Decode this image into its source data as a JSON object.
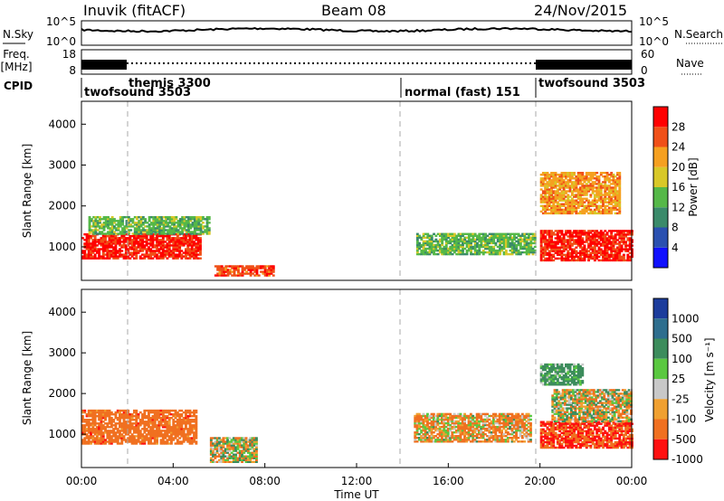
{
  "header": {
    "station": "Inuvik (fitACF)",
    "beam": "Beam 08",
    "date": "24/Nov/2015"
  },
  "strips": {
    "nsky_label": "N.Sky",
    "nsky_ticks": [
      "10^5",
      "10^0"
    ],
    "nsearch_label": "N.Search",
    "nsearch_ticks": [
      "10^5",
      "10^0"
    ],
    "freq_label_1": "Freq.",
    "freq_label_2": "[MHz]",
    "freq_ticks": [
      "18",
      "8"
    ],
    "nave_label": "Nave",
    "nave_ticks": [
      "60",
      "0"
    ],
    "cpid_label": "CPID",
    "programs": [
      {
        "name": "twofsound 3503",
        "start_h": 0
      },
      {
        "name": "themis 3300",
        "start_h": 2
      },
      {
        "name": "normal (fast) 151",
        "start_h": 14
      },
      {
        "name": "twofsound 3503",
        "start_h": 20
      }
    ]
  },
  "axes": {
    "ylabel": "Slant Range [km]",
    "xlabel": "Time UT",
    "yticks": [
      "1000",
      "2000",
      "3000",
      "4000"
    ],
    "xticks": [
      "00:00",
      "04:00",
      "08:00",
      "12:00",
      "16:00",
      "20:00",
      "00:00"
    ],
    "xlim_hours": [
      0,
      24
    ],
    "ylim_km": [
      180,
      4560
    ]
  },
  "power_scale": {
    "label": "Power [dB]",
    "ticks": [
      "4",
      "8",
      "12",
      "16",
      "20",
      "24",
      "28"
    ],
    "colors": [
      "#1010ff",
      "#2a50b0",
      "#3a8a6a",
      "#55b848",
      "#d8c828",
      "#f5a020",
      "#f05018",
      "#ff0000"
    ]
  },
  "velocity_scale": {
    "label": "Velocity [m s⁻¹]",
    "ticks": [
      "1000",
      "500",
      "100",
      "25",
      "-25",
      "-100",
      "-500",
      "-1000"
    ],
    "colors": [
      "#1c3c9c",
      "#2e6e8e",
      "#3c8c5c",
      "#5ac840",
      "#c8c8c8",
      "#f0a030",
      "#f07020",
      "#ff1010"
    ]
  },
  "chart_data": [
    {
      "type": "heatmap",
      "title": "Power",
      "xlabel": "Time UT",
      "ylabel": "Slant Range [km]",
      "xlim": [
        0,
        24
      ],
      "ylim": [
        180,
        4560
      ],
      "colorbar": {
        "label": "Power [dB]",
        "range": [
          0,
          30
        ]
      },
      "regions": [
        {
          "t0": 0.0,
          "t1": 5.2,
          "r0": 700,
          "r1": 1300,
          "value": 27
        },
        {
          "t0": 0.3,
          "t1": 5.6,
          "r0": 1300,
          "r1": 1750,
          "value": 13
        },
        {
          "t0": 5.8,
          "t1": 8.4,
          "r0": 280,
          "r1": 520,
          "value": 25
        },
        {
          "t0": 14.6,
          "t1": 19.8,
          "r0": 800,
          "r1": 1300,
          "value": 13
        },
        {
          "t0": 20.0,
          "t1": 24.0,
          "r0": 650,
          "r1": 1400,
          "value": 27
        },
        {
          "t0": 20.0,
          "t1": 23.5,
          "r0": 1800,
          "r1": 2800,
          "value": 21
        }
      ]
    },
    {
      "type": "heatmap",
      "title": "Velocity",
      "xlabel": "Time UT",
      "ylabel": "Slant Range [km]",
      "xlim": [
        0,
        24
      ],
      "ylim": [
        180,
        4560
      ],
      "colorbar": {
        "label": "Velocity [m s⁻¹]",
        "range": [
          -1000,
          1000
        ]
      },
      "regions": [
        {
          "t0": 0.0,
          "t1": 5.0,
          "r0": 750,
          "r1": 1600,
          "value": -300
        },
        {
          "t0": 5.6,
          "t1": 7.6,
          "r0": 300,
          "r1": 900,
          "value": 0
        },
        {
          "t0": 14.5,
          "t1": 19.6,
          "r0": 800,
          "r1": 1500,
          "value": -100
        },
        {
          "t0": 20.0,
          "t1": 24.0,
          "r0": 650,
          "r1": 1300,
          "value": -500
        },
        {
          "t0": 20.5,
          "t1": 24.0,
          "r0": 1300,
          "r1": 2100,
          "value": 0
        },
        {
          "t0": 20.0,
          "t1": 21.8,
          "r0": 2200,
          "r1": 2700,
          "value": 200
        }
      ]
    }
  ]
}
